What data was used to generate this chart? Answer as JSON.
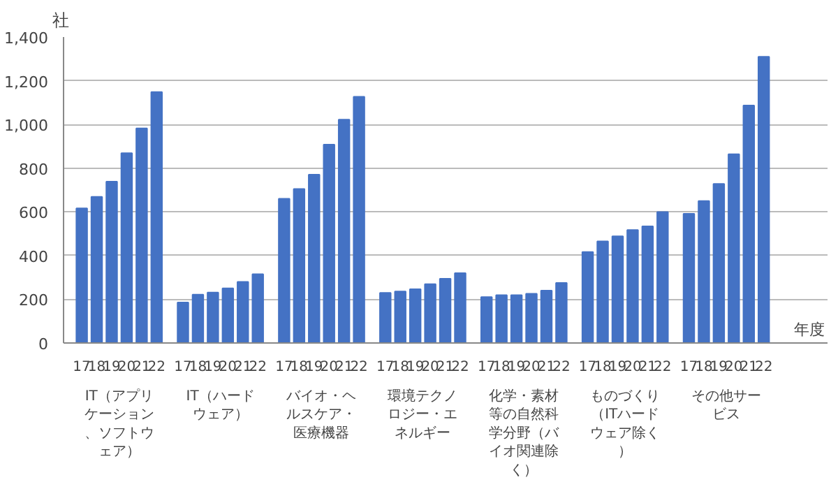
{
  "chart_data": {
    "type": "bar",
    "ylabel": "社",
    "xlabel": "年度",
    "categories": [
      "IT（アプリケーション、ソフトウェア）",
      "IT（ハードウェア）",
      "バイオ・ヘルスケア・医療機器",
      "環境テクノロジー・エネルギー",
      "化学・素材等の自然科学分野（バイオ関連除く）",
      "ものづくり（ITハードウェア除く）",
      "その他サービス"
    ],
    "series": [
      {
        "name": "17",
        "color": "#4472c4",
        "values": [
          616,
          185,
          660,
          229,
          210,
          416,
          591
        ]
      },
      {
        "name": "18",
        "color": "#4472c4",
        "values": [
          669,
          221,
          705,
          236,
          219,
          465,
          650
        ]
      },
      {
        "name": "19",
        "color": "#4472c4",
        "values": [
          738,
          231,
          770,
          246,
          219,
          488,
          728
        ]
      },
      {
        "name": "20",
        "color": "#4472c4",
        "values": [
          869,
          250,
          908,
          269,
          225,
          517,
          864
        ]
      },
      {
        "name": "21",
        "color": "#4472c4",
        "values": [
          982,
          280,
          1022,
          294,
          240,
          534,
          1087
        ]
      },
      {
        "name": "22",
        "color": "#4472c4",
        "values": [
          1148,
          315,
          1127,
          320,
          275,
          599,
          1310
        ]
      }
    ],
    "ylim": [
      0,
      1400
    ],
    "yticks": [
      0,
      200,
      400,
      600,
      800,
      {
        "value": 1000,
        "label": "1,000"
      },
      {
        "value": 1200,
        "label": "1,200"
      },
      {
        "value": 1400,
        "label": "1,400"
      }
    ],
    "grid": "y"
  }
}
